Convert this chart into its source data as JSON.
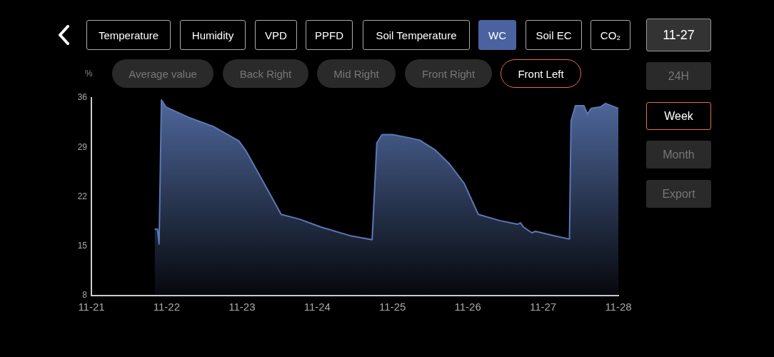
{
  "chart_data": {
    "type": "area",
    "ylabel": "%",
    "x": [
      "--11-21T20:10",
      "--11-21T21:05",
      "--11-21T21:35",
      "--11-21T22:20",
      "--11-21T23:45",
      "--11-22T07:10",
      "--11-22T15:05",
      "--11-22T23:00",
      "--11-23T01:25",
      "--11-23T07:10",
      "--11-23T12:30",
      "--11-23T18:30",
      "--11-24T01:10",
      "--11-24T10:20",
      "--11-24T17:30",
      "--11-24T19:00",
      "--11-24T20:40",
      "--11-25",
      "--11-25T05:45",
      "--11-25T08:40",
      "--11-25T13:40",
      "--11-25T18:15",
      "--11-25T22:50",
      "--11-26T03:20",
      "--11-26T10:20",
      "--11-26T15:50",
      "--11-26T16:50",
      "--11-26T17:45",
      "--11-26T20:25",
      "--11-26T21:35",
      "--11-27T03:20",
      "--11-27T08:25",
      "--11-27T08:55",
      "--11-27T10:20",
      "--11-27T13:00",
      "--11-27T14:10",
      "--11-27T15:20",
      "--11-27T18:15",
      "--11-27T19:55",
      "--11-28"
    ],
    "series": [
      {
        "color": "#5b78b5",
        "values": [
          17.4,
          17.4,
          15.3,
          35.7,
          34.7,
          33.2,
          31.9,
          29.9,
          28.4,
          23.8,
          19.5,
          18.8,
          17.7,
          16.5,
          15.9,
          29.6,
          30.8,
          30.8,
          30.3,
          30.0,
          28.6,
          26.6,
          23.9,
          19.5,
          18.6,
          18.1,
          18.3,
          17.7,
          16.9,
          17.1,
          16.5,
          16.0,
          32.7,
          34.9,
          34.9,
          33.7,
          34.5,
          34.7,
          35.2,
          34.5
        ]
      }
    ],
    "xlim": [
      "--11-21",
      "--11-28"
    ],
    "xticks": [
      {
        "value": "--11-21",
        "label": "11-21"
      },
      {
        "value": "--11-22",
        "label": "11-22"
      },
      {
        "value": "--11-23",
        "label": "11-23"
      },
      {
        "value": "--11-24",
        "label": "11-24"
      },
      {
        "value": "--11-25",
        "label": "11-25"
      },
      {
        "value": "--11-26",
        "label": "11-26"
      },
      {
        "value": "--11-27",
        "label": "11-27"
      },
      {
        "value": "--11-28",
        "label": "11-28"
      }
    ],
    "ylim": [
      8,
      36
    ],
    "yticks": [
      8,
      15,
      22,
      29,
      36
    ],
    "grid": false,
    "legend": false,
    "marker": "none",
    "line_style": "solid",
    "annotations": [
      "Temperature",
      "Humidity",
      "VPD",
      "PPFD",
      "Soil Temperature",
      "WC",
      "Soil EC",
      "CO₂",
      "Average value",
      "Back Right",
      "Mid Right",
      "Front Right",
      "Front Left",
      "11-27",
      "24H",
      "Week",
      "Month",
      "Export"
    ]
  }
}
